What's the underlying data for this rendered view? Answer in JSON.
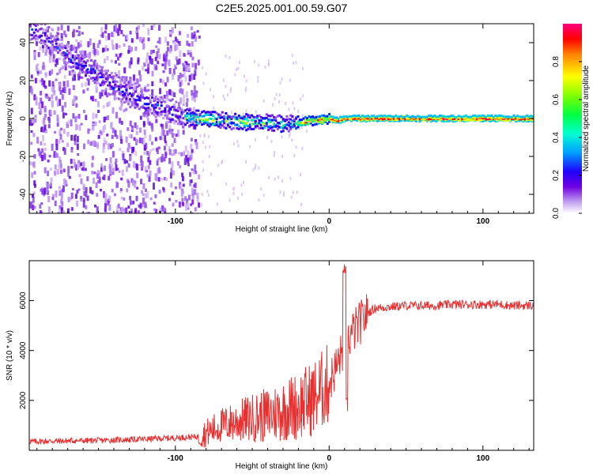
{
  "title": "C2E5.2025.001.00.59.G07",
  "chart_data": [
    {
      "type": "heatmap",
      "xlabel": "Height of straight line (km)",
      "ylabel": "Frequency (Hz)",
      "xlim": [
        -195,
        133
      ],
      "ylim": [
        -50,
        50
      ],
      "xticks": [
        -100,
        0,
        100
      ],
      "xtick_labels": [
        "-100",
        "0",
        "100"
      ],
      "yticks": [
        -40,
        -20,
        0,
        20,
        40
      ],
      "ytick_labels": [
        "-40",
        "-20",
        "0",
        "20",
        "40"
      ],
      "colorbar": {
        "label": "Normalized spectral amplitude",
        "range": [
          0,
          1
        ],
        "ticks": [
          0.0,
          0.2,
          0.4,
          0.6,
          0.8
        ],
        "tick_labels": [
          "0.0",
          "0.2",
          "0.4",
          "0.6",
          "0.8"
        ],
        "colormap": [
          "#ffffff",
          "#b080f0",
          "#6000e0",
          "#0000ff",
          "#00c0ff",
          "#00ff80",
          "#a0ff00",
          "#ffff00",
          "#ff8000",
          "#ff0000",
          "#ff0080"
        ]
      },
      "ridge": {
        "x": [
          -195,
          -180,
          -165,
          -150,
          -135,
          -120,
          -105,
          -95,
          -85,
          -70,
          -55,
          -40,
          -30,
          -20,
          -10,
          0,
          5,
          10,
          20,
          40,
          60,
          80,
          100,
          120,
          133
        ],
        "freq": [
          48,
          40,
          30,
          22,
          15,
          9,
          4,
          1,
          0,
          -1,
          -2,
          -2,
          -3,
          -2,
          -1,
          0,
          -1,
          0,
          0,
          0,
          0,
          0,
          0,
          0,
          0
        ]
      },
      "grid": false
    },
    {
      "type": "line",
      "xlabel": "Height of straight line (km)",
      "ylabel": "SNR (10 * v/v)",
      "xlim": [
        -195,
        133
      ],
      "ylim": [
        0,
        7600
      ],
      "xticks": [
        -100,
        0,
        100
      ],
      "xtick_labels": [
        "-100",
        "0",
        "100"
      ],
      "yticks": [
        2000,
        4000,
        6000
      ],
      "ytick_labels": [
        "2000",
        "4000",
        "6000"
      ],
      "color": "#e83030",
      "x": [
        -195,
        -170,
        -145,
        -120,
        -100,
        -85,
        -80,
        -70,
        -60,
        -50,
        -40,
        -30,
        -20,
        -10,
        -5,
        0,
        5,
        10,
        15,
        20,
        25,
        30,
        40,
        50,
        60,
        70,
        80,
        90,
        100,
        110,
        120,
        133
      ],
      "y": [
        350,
        380,
        400,
        450,
        500,
        550,
        700,
        1000,
        1150,
        1300,
        1400,
        1600,
        1800,
        2100,
        2400,
        2700,
        3400,
        4200,
        4700,
        5100,
        5500,
        5700,
        5750,
        5800,
        5800,
        5800,
        5850,
        5850,
        5850,
        5850,
        5800,
        5800
      ],
      "grid": false
    }
  ]
}
